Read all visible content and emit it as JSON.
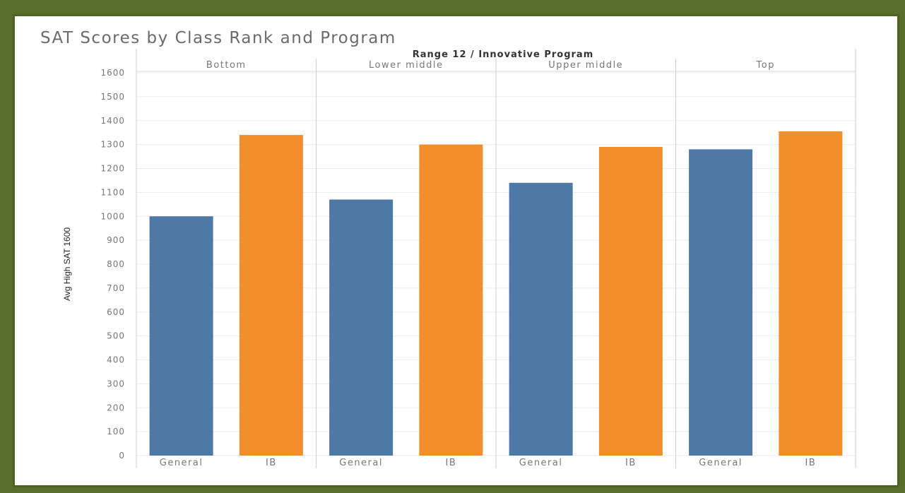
{
  "colors": {
    "General": "#4e79a7",
    "IB": "#f28e2b",
    "frame": "#5a6e2c"
  },
  "chart_data": {
    "type": "bar",
    "title": "SAT Scores by Class Rank and Program",
    "column_header": "Range 12 / Innovative Program",
    "ylabel": "Avg High SAT 1600",
    "ylim": [
      0,
      1600
    ],
    "yticks": [
      0,
      100,
      200,
      300,
      400,
      500,
      600,
      700,
      800,
      900,
      1000,
      1100,
      1200,
      1300,
      1400,
      1500,
      1600
    ],
    "categories": [
      "General",
      "IB"
    ],
    "panels": [
      {
        "name": "Bottom",
        "values": [
          1000,
          1340
        ]
      },
      {
        "name": "Lower middle",
        "values": [
          1070,
          1300
        ]
      },
      {
        "name": "Upper middle",
        "values": [
          1140,
          1290
        ]
      },
      {
        "name": "Top",
        "values": [
          1280,
          1355
        ]
      }
    ]
  }
}
